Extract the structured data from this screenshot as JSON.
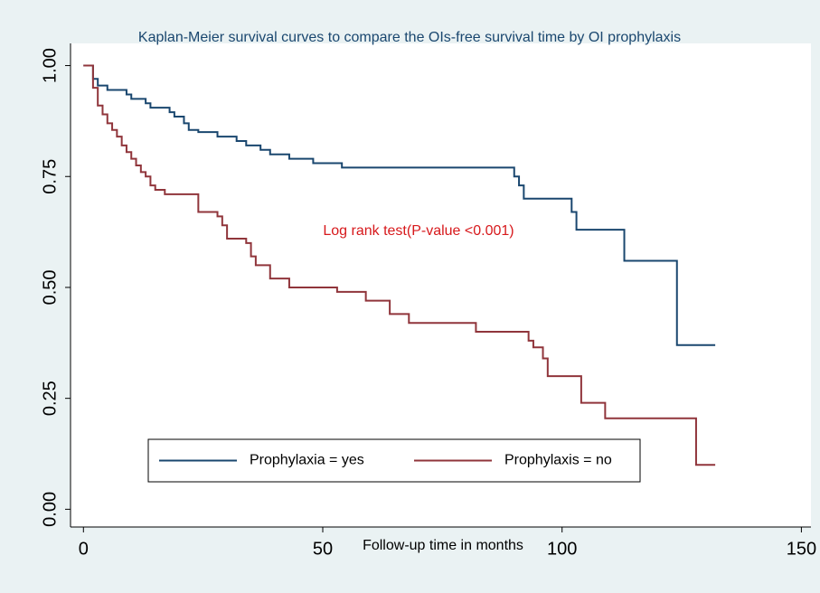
{
  "chart_data": {
    "type": "step",
    "title": "Kaplan-Meier survival curves to compare the OIs-free survival time by OI prophylaxis",
    "x_label": "Follow-up  time in months",
    "annotation": "Log rank test(P-value <0.001)",
    "annotation_color": "#d7191c",
    "xlim": [
      -2.7,
      152
    ],
    "ylim": [
      -0.04,
      1.05
    ],
    "xticks": [
      0,
      50,
      100,
      150
    ],
    "yticks": [
      {
        "value": 0,
        "label": "0.00"
      },
      0.25,
      {
        "value": 0.5,
        "label": "0.50"
      },
      0.75,
      {
        "value": 1,
        "label": "1.00"
      }
    ],
    "grid": false,
    "legend": "bottom",
    "series": [
      {
        "name": "Prophylaxia = yes",
        "color": "#1a476f",
        "x": [
          0,
          2,
          3,
          5,
          9,
          10,
          13,
          14,
          18,
          19,
          21,
          22,
          24,
          28,
          32,
          34,
          37,
          39,
          43,
          48,
          54,
          90,
          91,
          92,
          102,
          103,
          113,
          124,
          132
        ],
        "values": [
          1.0,
          0.97,
          0.955,
          0.945,
          0.935,
          0.925,
          0.915,
          0.905,
          0.895,
          0.885,
          0.87,
          0.855,
          0.85,
          0.84,
          0.83,
          0.82,
          0.81,
          0.8,
          0.79,
          0.78,
          0.77,
          0.75,
          0.73,
          0.7,
          0.67,
          0.63,
          0.56,
          0.37,
          0.37
        ]
      },
      {
        "name": "Prophylaxis = no",
        "color": "#90353b",
        "x": [
          0,
          2,
          3,
          4,
          5,
          6,
          7,
          8,
          9,
          10,
          11,
          12,
          13,
          14,
          15,
          17,
          24,
          28,
          29,
          30,
          34,
          35,
          36,
          39,
          43,
          53,
          59,
          64,
          68,
          82,
          93,
          94,
          96,
          97,
          104,
          109,
          128,
          132
        ],
        "values": [
          1.0,
          0.95,
          0.91,
          0.89,
          0.87,
          0.855,
          0.84,
          0.82,
          0.805,
          0.79,
          0.775,
          0.76,
          0.75,
          0.73,
          0.72,
          0.71,
          0.67,
          0.66,
          0.64,
          0.61,
          0.6,
          0.57,
          0.55,
          0.52,
          0.5,
          0.49,
          0.47,
          0.44,
          0.42,
          0.4,
          0.38,
          0.365,
          0.34,
          0.3,
          0.24,
          0.205,
          0.1,
          0.1
        ]
      }
    ]
  }
}
